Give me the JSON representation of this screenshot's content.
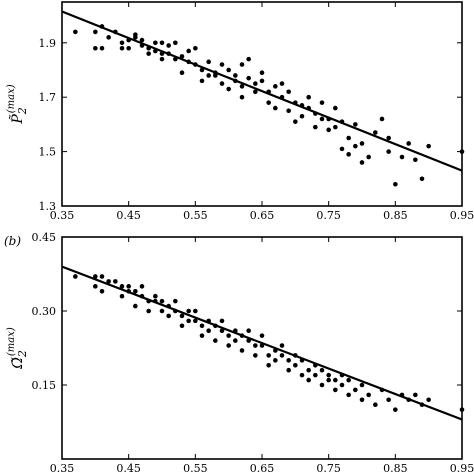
{
  "chart_data": [
    {
      "type": "scatter",
      "panel_label": "",
      "ylabel": {
        "accent": "~",
        "base": "P",
        "sub": "2",
        "sup": "(max)"
      },
      "xlim": [
        0.35,
        0.95
      ],
      "ylim": [
        1.3,
        2.05
      ],
      "xticks": [
        0.35,
        0.45,
        0.55,
        0.65,
        0.75,
        0.85,
        0.95
      ],
      "xtick_labels": [
        "0.35",
        "0.45",
        "0.55",
        "0.65",
        "0.75",
        "0.85",
        "0.95"
      ],
      "yticks": [
        1.3,
        1.5,
        1.7,
        1.9
      ],
      "ytick_labels": [
        "1.3",
        "1.5",
        "1.7",
        "1.9"
      ],
      "fit_line": {
        "x": [
          0.35,
          0.95
        ],
        "y": [
          2.015,
          1.43
        ]
      },
      "points": [
        [
          0.37,
          1.94
        ],
        [
          0.4,
          1.94
        ],
        [
          0.41,
          1.96
        ],
        [
          0.4,
          1.88
        ],
        [
          0.41,
          1.88
        ],
        [
          0.42,
          1.92
        ],
        [
          0.43,
          1.94
        ],
        [
          0.44,
          1.88
        ],
        [
          0.44,
          1.9
        ],
        [
          0.45,
          1.88
        ],
        [
          0.45,
          1.91
        ],
        [
          0.46,
          1.93
        ],
        [
          0.46,
          1.92
        ],
        [
          0.47,
          1.89
        ],
        [
          0.47,
          1.91
        ],
        [
          0.48,
          1.88
        ],
        [
          0.48,
          1.86
        ],
        [
          0.49,
          1.9
        ],
        [
          0.49,
          1.87
        ],
        [
          0.5,
          1.9
        ],
        [
          0.5,
          1.86
        ],
        [
          0.5,
          1.84
        ],
        [
          0.51,
          1.89
        ],
        [
          0.51,
          1.86
        ],
        [
          0.52,
          1.9
        ],
        [
          0.52,
          1.84
        ],
        [
          0.53,
          1.85
        ],
        [
          0.53,
          1.79
        ],
        [
          0.54,
          1.87
        ],
        [
          0.54,
          1.83
        ],
        [
          0.55,
          1.82
        ],
        [
          0.55,
          1.88
        ],
        [
          0.56,
          1.8
        ],
        [
          0.56,
          1.76
        ],
        [
          0.57,
          1.78
        ],
        [
          0.57,
          1.83
        ],
        [
          0.58,
          1.79
        ],
        [
          0.58,
          1.78
        ],
        [
          0.59,
          1.82
        ],
        [
          0.59,
          1.75
        ],
        [
          0.6,
          1.8
        ],
        [
          0.6,
          1.73
        ],
        [
          0.61,
          1.78
        ],
        [
          0.61,
          1.76
        ],
        [
          0.62,
          1.82
        ],
        [
          0.62,
          1.74
        ],
        [
          0.62,
          1.7
        ],
        [
          0.63,
          1.77
        ],
        [
          0.63,
          1.84
        ],
        [
          0.64,
          1.75
        ],
        [
          0.64,
          1.72
        ],
        [
          0.65,
          1.79
        ],
        [
          0.65,
          1.76
        ],
        [
          0.66,
          1.72
        ],
        [
          0.66,
          1.68
        ],
        [
          0.67,
          1.74
        ],
        [
          0.67,
          1.66
        ],
        [
          0.68,
          1.7
        ],
        [
          0.68,
          1.75
        ],
        [
          0.69,
          1.65
        ],
        [
          0.69,
          1.72
        ],
        [
          0.7,
          1.68
        ],
        [
          0.7,
          1.61
        ],
        [
          0.71,
          1.67
        ],
        [
          0.71,
          1.63
        ],
        [
          0.72,
          1.7
        ],
        [
          0.72,
          1.66
        ],
        [
          0.73,
          1.59
        ],
        [
          0.73,
          1.64
        ],
        [
          0.74,
          1.68
        ],
        [
          0.74,
          1.62
        ],
        [
          0.75,
          1.58
        ],
        [
          0.75,
          1.62
        ],
        [
          0.76,
          1.59
        ],
        [
          0.76,
          1.66
        ],
        [
          0.77,
          1.61
        ],
        [
          0.77,
          1.51
        ],
        [
          0.78,
          1.55
        ],
        [
          0.78,
          1.49
        ],
        [
          0.79,
          1.52
        ],
        [
          0.79,
          1.6
        ],
        [
          0.8,
          1.53
        ],
        [
          0.8,
          1.46
        ],
        [
          0.81,
          1.48
        ],
        [
          0.82,
          1.57
        ],
        [
          0.83,
          1.62
        ],
        [
          0.84,
          1.5
        ],
        [
          0.84,
          1.55
        ],
        [
          0.85,
          1.38
        ],
        [
          0.86,
          1.48
        ],
        [
          0.87,
          1.53
        ],
        [
          0.88,
          1.47
        ],
        [
          0.89,
          1.4
        ],
        [
          0.9,
          1.52
        ],
        [
          0.95,
          1.5
        ]
      ]
    },
    {
      "type": "scatter",
      "panel_label": "(b)",
      "ylabel": {
        "accent": "~",
        "base": "Ω",
        "sub": "2",
        "sup": "(max)"
      },
      "xlim": [
        0.35,
        0.95
      ],
      "ylim": [
        0.0,
        0.45
      ],
      "xticks": [
        0.35,
        0.45,
        0.55,
        0.65,
        0.75,
        0.85,
        0.95
      ],
      "xtick_labels": [
        "0.35",
        "0.45",
        "0.55",
        "0.65",
        "0.75",
        "0.85",
        "0.95"
      ],
      "yticks": [
        0.15,
        0.3,
        0.45
      ],
      "ytick_labels": [
        "0.15",
        "0.30",
        "0.45"
      ],
      "fit_line": {
        "x": [
          0.35,
          0.95
        ],
        "y": [
          0.39,
          0.08
        ]
      },
      "points": [
        [
          0.37,
          0.37
        ],
        [
          0.4,
          0.37
        ],
        [
          0.4,
          0.35
        ],
        [
          0.41,
          0.37
        ],
        [
          0.41,
          0.34
        ],
        [
          0.42,
          0.36
        ],
        [
          0.43,
          0.36
        ],
        [
          0.44,
          0.35
        ],
        [
          0.44,
          0.33
        ],
        [
          0.45,
          0.35
        ],
        [
          0.45,
          0.34
        ],
        [
          0.46,
          0.34
        ],
        [
          0.46,
          0.31
        ],
        [
          0.47,
          0.33
        ],
        [
          0.47,
          0.35
        ],
        [
          0.48,
          0.32
        ],
        [
          0.48,
          0.3
        ],
        [
          0.49,
          0.32
        ],
        [
          0.49,
          0.33
        ],
        [
          0.5,
          0.32
        ],
        [
          0.5,
          0.3
        ],
        [
          0.51,
          0.31
        ],
        [
          0.51,
          0.29
        ],
        [
          0.52,
          0.3
        ],
        [
          0.52,
          0.32
        ],
        [
          0.53,
          0.29
        ],
        [
          0.53,
          0.27
        ],
        [
          0.54,
          0.3
        ],
        [
          0.54,
          0.28
        ],
        [
          0.55,
          0.28
        ],
        [
          0.55,
          0.3
        ],
        [
          0.56,
          0.27
        ],
        [
          0.56,
          0.25
        ],
        [
          0.57,
          0.28
        ],
        [
          0.57,
          0.26
        ],
        [
          0.58,
          0.27
        ],
        [
          0.58,
          0.24
        ],
        [
          0.59,
          0.26
        ],
        [
          0.59,
          0.28
        ],
        [
          0.6,
          0.25
        ],
        [
          0.6,
          0.23
        ],
        [
          0.61,
          0.26
        ],
        [
          0.61,
          0.24
        ],
        [
          0.62,
          0.25
        ],
        [
          0.62,
          0.22
        ],
        [
          0.63,
          0.24
        ],
        [
          0.63,
          0.26
        ],
        [
          0.64,
          0.23
        ],
        [
          0.64,
          0.21
        ],
        [
          0.65,
          0.23
        ],
        [
          0.65,
          0.25
        ],
        [
          0.66,
          0.21
        ],
        [
          0.66,
          0.19
        ],
        [
          0.67,
          0.22
        ],
        [
          0.67,
          0.2
        ],
        [
          0.68,
          0.21
        ],
        [
          0.68,
          0.23
        ],
        [
          0.69,
          0.2
        ],
        [
          0.69,
          0.18
        ],
        [
          0.7,
          0.19
        ],
        [
          0.7,
          0.21
        ],
        [
          0.71,
          0.17
        ],
        [
          0.71,
          0.2
        ],
        [
          0.72,
          0.18
        ],
        [
          0.72,
          0.16
        ],
        [
          0.73,
          0.19
        ],
        [
          0.73,
          0.17
        ],
        [
          0.74,
          0.18
        ],
        [
          0.74,
          0.15
        ],
        [
          0.75,
          0.17
        ],
        [
          0.75,
          0.16
        ],
        [
          0.76,
          0.16
        ],
        [
          0.76,
          0.14
        ],
        [
          0.77,
          0.17
        ],
        [
          0.77,
          0.15
        ],
        [
          0.78,
          0.13
        ],
        [
          0.78,
          0.16
        ],
        [
          0.79,
          0.14
        ],
        [
          0.8,
          0.12
        ],
        [
          0.8,
          0.15
        ],
        [
          0.81,
          0.13
        ],
        [
          0.82,
          0.11
        ],
        [
          0.83,
          0.14
        ],
        [
          0.84,
          0.12
        ],
        [
          0.85,
          0.1
        ],
        [
          0.86,
          0.13
        ],
        [
          0.87,
          0.12
        ],
        [
          0.88,
          0.13
        ],
        [
          0.89,
          0.11
        ],
        [
          0.9,
          0.12
        ],
        [
          0.95,
          0.1
        ]
      ]
    }
  ]
}
